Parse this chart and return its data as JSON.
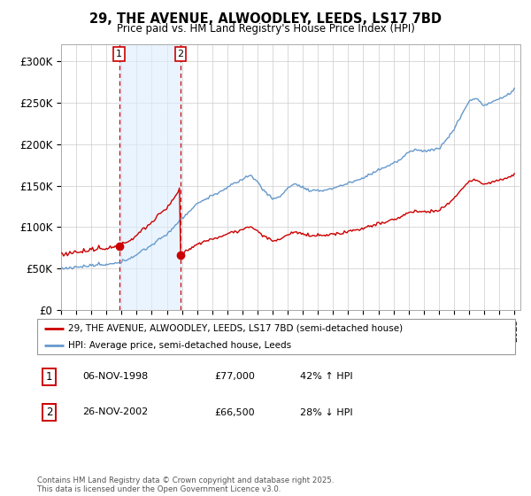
{
  "title_line1": "29, THE AVENUE, ALWOODLEY, LEEDS, LS17 7BD",
  "title_line2": "Price paid vs. HM Land Registry's House Price Index (HPI)",
  "ylim": [
    0,
    320000
  ],
  "yticks": [
    0,
    50000,
    100000,
    150000,
    200000,
    250000,
    300000
  ],
  "ytick_labels": [
    "£0",
    "£50K",
    "£100K",
    "£150K",
    "£200K",
    "£250K",
    "£300K"
  ],
  "line1_color": "#cc0000",
  "line2_color": "#6699cc",
  "purchase1_year": 1998.85,
  "purchase1_price": 77000,
  "purchase2_year": 2002.9,
  "purchase2_price": 66500,
  "legend_line1": "29, THE AVENUE, ALWOODLEY, LEEDS, LS17 7BD (semi-detached house)",
  "legend_line2": "HPI: Average price, semi-detached house, Leeds",
  "table_row1": [
    "1",
    "06-NOV-1998",
    "£77,000",
    "42% ↑ HPI"
  ],
  "table_row2": [
    "2",
    "26-NOV-2002",
    "£66,500",
    "28% ↓ HPI"
  ],
  "footnote": "Contains HM Land Registry data © Crown copyright and database right 2025.\nThis data is licensed under the Open Government Licence v3.0."
}
